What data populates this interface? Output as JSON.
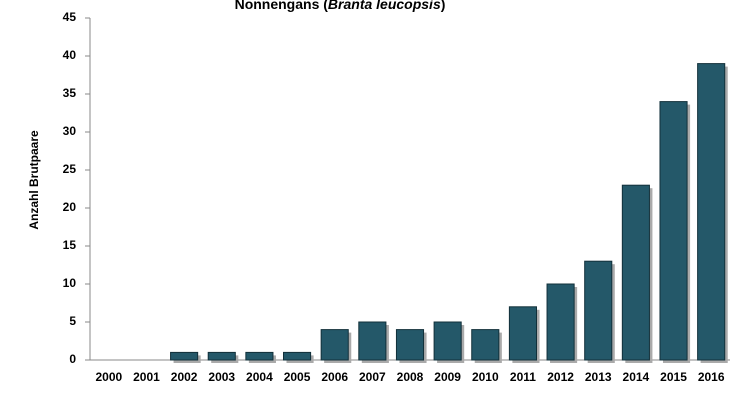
{
  "chart_data": {
    "type": "bar",
    "title": [
      "Nonnengans (",
      "Branta leucopsis",
      ")"
    ],
    "y_label": "Anzahl Brutpaare",
    "categories": [
      "2000",
      "2001",
      "2002",
      "2003",
      "2004",
      "2005",
      "2006",
      "2007",
      "2008",
      "2009",
      "2010",
      "2011",
      "2012",
      "2013",
      "2014",
      "2015",
      "2016"
    ],
    "values": [
      0,
      0,
      1,
      1,
      1,
      1,
      4,
      5,
      4,
      5,
      4,
      7,
      10,
      13,
      23,
      34,
      39
    ],
    "color": "#245869",
    "ylim": [
      0,
      45
    ],
    "yticks": [
      0,
      5,
      10,
      15,
      20,
      25,
      30,
      35,
      40,
      45
    ],
    "grid": false
  }
}
